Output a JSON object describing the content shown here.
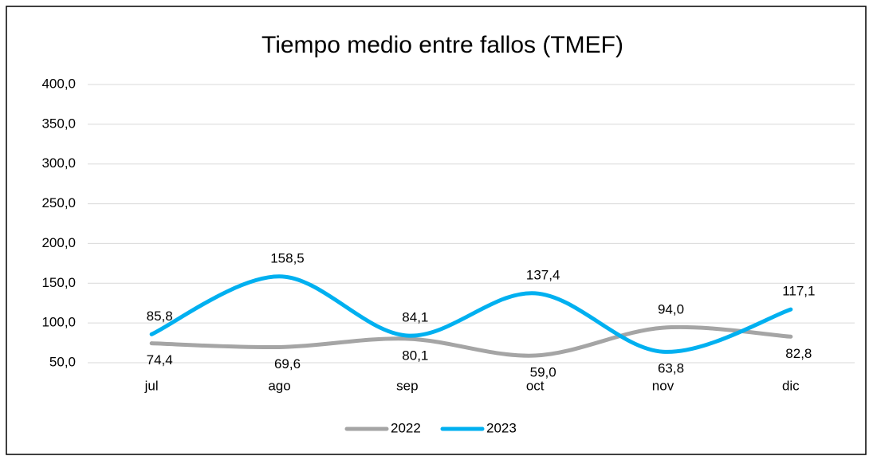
{
  "chart_data": {
    "type": "line",
    "title": "Tiempo medio entre fallos (TMEF)",
    "categories": [
      "jul",
      "ago",
      "sep",
      "oct",
      "nov",
      "dic"
    ],
    "series": [
      {
        "name": "2022",
        "color": "#a5a5a5",
        "values": [
          74.4,
          69.6,
          80.1,
          59.0,
          94.0,
          82.8
        ],
        "value_labels": [
          "74,4",
          "69,6",
          "80,1",
          "59,0",
          "94,0",
          "82,8"
        ]
      },
      {
        "name": "2023",
        "color": "#00b0f0",
        "values": [
          85.8,
          158.5,
          84.1,
          137.4,
          63.8,
          117.1
        ],
        "value_labels": [
          "85,8",
          "158,5",
          "84,1",
          "137,4",
          "63,8",
          "117,1"
        ]
      }
    ],
    "ylim": [
      50,
      400
    ],
    "yticks": [
      {
        "value": 50,
        "label": "50,0"
      },
      {
        "value": 100,
        "label": "100,0"
      },
      {
        "value": 150,
        "label": "150,0"
      },
      {
        "value": 200,
        "label": "200,0"
      },
      {
        "value": 250,
        "label": "250,0"
      },
      {
        "value": 300,
        "label": "300,0"
      },
      {
        "value": 350,
        "label": "350,0"
      },
      {
        "value": 400,
        "label": "400,0"
      }
    ],
    "grid": true,
    "legend": "bottom",
    "smooth": true
  }
}
